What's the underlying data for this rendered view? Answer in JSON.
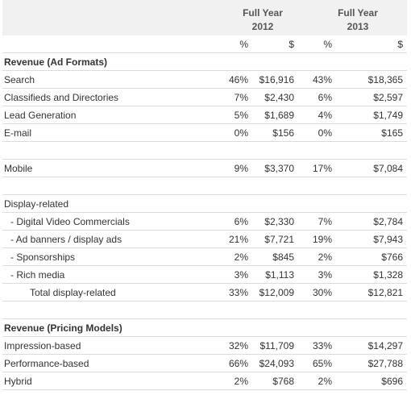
{
  "table": {
    "header": {
      "groups": [
        [
          "Full Year",
          "2012"
        ],
        [
          "Full Year",
          "2013"
        ]
      ],
      "units": [
        "%",
        "$",
        "%",
        "$"
      ]
    },
    "rows": [
      {
        "label": "Revenue (Ad Formats)",
        "style": "heading"
      },
      {
        "label": "Search",
        "cells": [
          "46%",
          "$16,916",
          "43%",
          "$18,365"
        ]
      },
      {
        "label": "Classifieds and Directories",
        "cells": [
          "7%",
          "$2,430",
          "6%",
          "$2,597"
        ]
      },
      {
        "label": "Lead Generation",
        "cells": [
          "5%",
          "$1,689",
          "4%",
          "$1,749"
        ]
      },
      {
        "label": "E-mail",
        "cells": [
          "0%",
          "$156",
          "0%",
          "$165"
        ]
      },
      {
        "label": "Mobile",
        "cells": [
          "9%",
          "$3,370",
          "17%",
          "$7,084"
        ],
        "space_before": true
      },
      {
        "label": "Display-related",
        "space_before": true
      },
      {
        "label": "- Digital Video Commercials",
        "cells": [
          "6%",
          "$2,330",
          "7%",
          "$2,784"
        ],
        "style": "indent"
      },
      {
        "label": "- Ad banners / display ads",
        "cells": [
          "21%",
          "$7,721",
          "19%",
          "$7,943"
        ],
        "style": "indent"
      },
      {
        "label": "- Sponsorships",
        "cells": [
          "2%",
          "$845",
          "2%",
          "$766"
        ],
        "style": "indent"
      },
      {
        "label": "- Rich media",
        "cells": [
          "3%",
          "$1,113",
          "3%",
          "$1,328"
        ],
        "style": "indent"
      },
      {
        "label": "Total display-related",
        "cells": [
          "33%",
          "$12,009",
          "30%",
          "$12,821"
        ],
        "style": "total"
      },
      {
        "label": "Revenue (Pricing Models)",
        "style": "heading",
        "space_before": true
      },
      {
        "label": "Impression-based",
        "cells": [
          "32%",
          "$11,709",
          "33%",
          "$14,297"
        ]
      },
      {
        "label": "Performance-based",
        "cells": [
          "66%",
          "$24,093",
          "65%",
          "$27,788"
        ]
      },
      {
        "label": "Hybrid",
        "cells": [
          "2%",
          "$768",
          "2%",
          "$696"
        ]
      }
    ]
  }
}
